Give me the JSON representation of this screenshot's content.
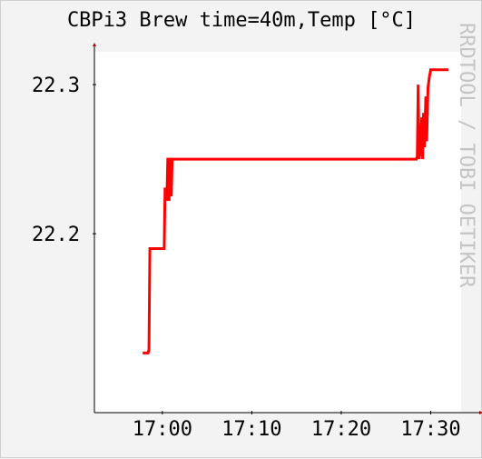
{
  "chart_data": {
    "type": "line",
    "title": "CBPi3 Brew time=40m,Temp [°C]",
    "watermark": "RRDTOOL / TOBI OETIKER",
    "xlabel": "",
    "ylabel": "",
    "x_ticks": [
      "17:00",
      "17:10",
      "17:20",
      "17:30"
    ],
    "x_tick_minutes": [
      0,
      10,
      20,
      30
    ],
    "y_ticks": [
      "22.2",
      "22.3"
    ],
    "y_tick_values": [
      22.2,
      22.3
    ],
    "xlim": [
      -7.6,
      33.4
    ],
    "ylim": [
      22.08,
      22.322
    ],
    "grid": false,
    "legend": "none",
    "series": [
      {
        "color": "#ff0000",
        "points": [
          [
            -2.2,
            22.12
          ],
          [
            -1.6,
            22.12
          ],
          [
            -1.5,
            22.122
          ],
          [
            -1.4,
            22.19
          ],
          [
            0.1,
            22.19
          ],
          [
            0.2,
            22.19
          ],
          [
            0.3,
            22.23
          ],
          [
            0.45,
            22.23
          ],
          [
            0.5,
            22.222
          ],
          [
            0.6,
            22.25
          ],
          [
            0.7,
            22.25
          ],
          [
            0.75,
            22.222
          ],
          [
            0.85,
            22.25
          ],
          [
            0.95,
            22.25
          ],
          [
            1.0,
            22.225
          ],
          [
            1.1,
            22.25
          ],
          [
            1.3,
            22.25
          ],
          [
            28.4,
            22.25
          ],
          [
            28.5,
            22.252
          ],
          [
            28.6,
            22.3
          ],
          [
            28.7,
            22.25
          ],
          [
            28.8,
            22.272
          ],
          [
            28.85,
            22.252
          ],
          [
            29.0,
            22.278
          ],
          [
            29.1,
            22.25
          ],
          [
            29.2,
            22.281
          ],
          [
            29.3,
            22.258
          ],
          [
            29.45,
            22.292
          ],
          [
            29.55,
            22.262
          ],
          [
            29.7,
            22.298
          ],
          [
            29.85,
            22.305
          ],
          [
            30.0,
            22.31
          ],
          [
            32.0,
            22.31
          ]
        ]
      }
    ]
  }
}
